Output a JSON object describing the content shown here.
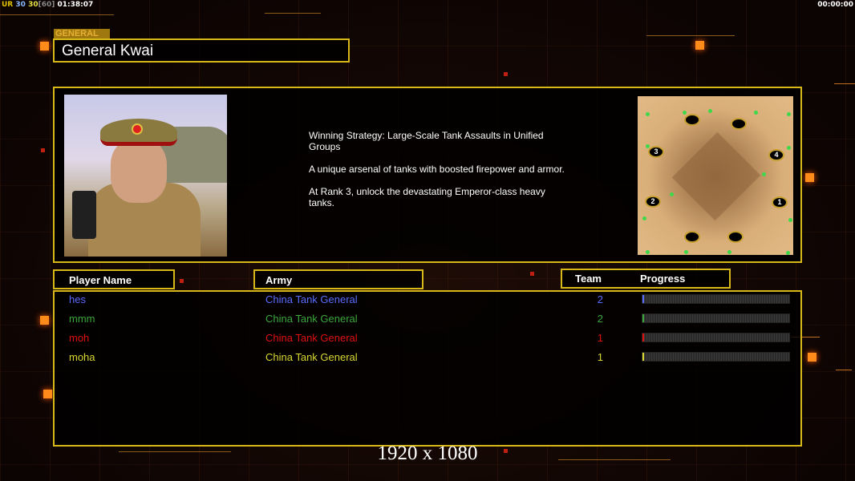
{
  "hud": {
    "left_tag": "UR",
    "left_val1": "30",
    "left_val2": "30",
    "left_bracket": "[60]",
    "left_time": "01:38:07",
    "right_time": "00:00:00"
  },
  "general": {
    "label": "GENERAL",
    "name": "General Kwai",
    "description": [
      "Winning Strategy: Large-Scale Tank Assaults in Unified Groups",
      "A unique arsenal of tanks with boosted firepower and armor.",
      "At Rank 3, unlock the devastating Emperor-class heavy tanks."
    ]
  },
  "map": {
    "start_positions": [
      "1",
      "2",
      "3",
      "4"
    ]
  },
  "columns": {
    "player": "Player Name",
    "army": "Army",
    "team": "Team",
    "progress": "Progress"
  },
  "players": [
    {
      "name": "hes",
      "army": "China Tank General",
      "team": "2",
      "progress": 1,
      "color": "#5a6cff"
    },
    {
      "name": "mmm",
      "army": "China Tank General",
      "team": "2",
      "progress": 1,
      "color": "#3aa83a"
    },
    {
      "name": "moh",
      "army": "China Tank General",
      "team": "1",
      "progress": 1,
      "color": "#e01010"
    },
    {
      "name": "moha",
      "army": "China Tank General",
      "team": "1",
      "progress": 1,
      "color": "#d8d830"
    }
  ],
  "resolution": "1920 x 1080",
  "colors": {
    "frame": "#d8b818",
    "accent": "#ff8c1a"
  }
}
